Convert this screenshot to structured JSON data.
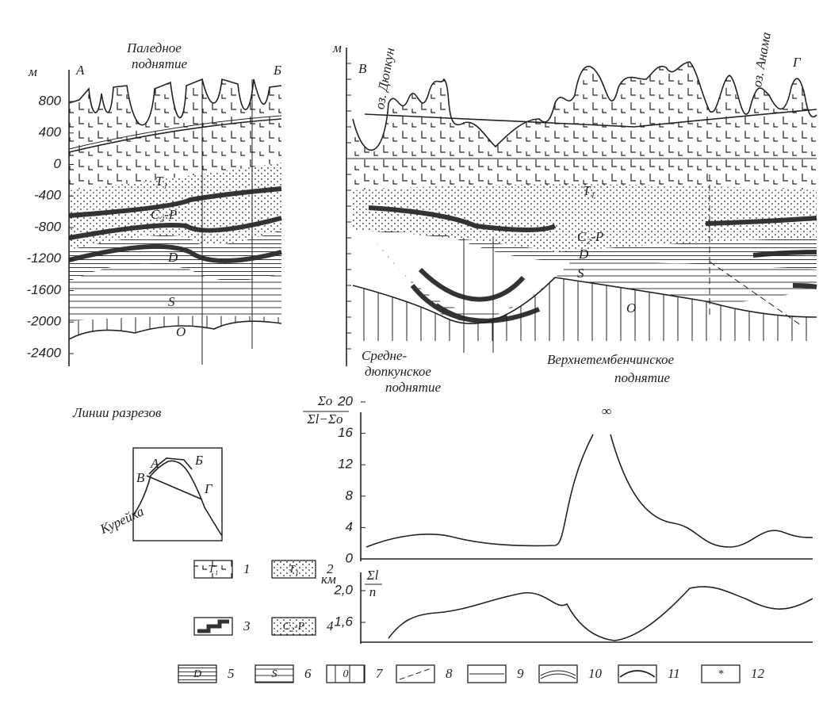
{
  "section_ab": {
    "unit": "м",
    "start": "А",
    "end": "Б",
    "title": [
      "Паледное",
      "поднятие"
    ],
    "yticks": [
      "800",
      "400",
      "0",
      "-400",
      "-800",
      "-1200",
      "-1600",
      "-2000",
      "-2400"
    ],
    "layers": [
      "T₁",
      "C₂-P",
      "D",
      "S",
      "O"
    ]
  },
  "section_vg": {
    "unit": "м",
    "start": "В",
    "end": "Г",
    "lakes": [
      "оз. Дюпкун",
      "оз. Анама"
    ],
    "layers": [
      "T₁",
      "C₂-P",
      "D",
      "S",
      "O"
    ],
    "uplifts": [
      [
        "Средне-",
        "дюпкунское",
        "поднятие"
      ],
      [
        "Верхнетембенчинское",
        "поднятие"
      ]
    ]
  },
  "chart_ratio": {
    "ylabel_num": "Σo",
    "ylabel_den": "Σl−Σo",
    "yticks": [
      "0",
      "4",
      "8",
      "12",
      "16",
      "20"
    ],
    "annotation": "∞"
  },
  "chart_thickness": {
    "unit": "км",
    "ylabel_num": "Σl",
    "ylabel_den": "n",
    "yticks": [
      "1,6",
      "2,0"
    ]
  },
  "inset": {
    "title": "Линии разрезов",
    "labels": [
      "А",
      "Б",
      "В",
      "Г"
    ],
    "river": "Курейка"
  },
  "legend": [
    {
      "number": "1",
      "symbol": "T₁"
    },
    {
      "number": "2",
      "symbol": "T₁"
    },
    {
      "number": "3"
    },
    {
      "number": "4",
      "symbol": "C₂-P"
    },
    {
      "number": "5",
      "symbol": "D"
    },
    {
      "number": "6",
      "symbol": "S"
    },
    {
      "number": "7",
      "symbol": "0"
    },
    {
      "number": "8"
    },
    {
      "number": "9"
    },
    {
      "number": "10"
    },
    {
      "number": "11"
    },
    {
      "number": "12",
      "symbol": "*"
    }
  ]
}
